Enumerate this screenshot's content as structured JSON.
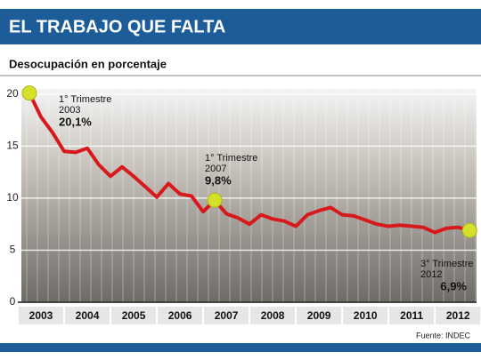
{
  "chart_data": {
    "type": "line",
    "title": "EL TRABAJO QUE FALTA",
    "subtitle": "Desocupación en porcentaje",
    "source": "Fuente: INDEC",
    "x": [
      2003,
      2003.25,
      2003.5,
      2003.75,
      2004,
      2004.25,
      2004.5,
      2004.75,
      2005,
      2005.25,
      2005.5,
      2005.75,
      2006,
      2006.25,
      2006.5,
      2006.75,
      2007,
      2007.25,
      2007.5,
      2007.75,
      2008,
      2008.25,
      2008.5,
      2008.75,
      2009,
      2009.25,
      2009.5,
      2009.75,
      2010,
      2010.25,
      2010.5,
      2010.75,
      2011,
      2011.25,
      2011.5,
      2011.75,
      2012,
      2012.25,
      2012.5
    ],
    "series": [
      {
        "color": "#d7191c",
        "values": [
          20.1,
          17.8,
          16.3,
          14.5,
          14.4,
          14.8,
          13.2,
          12.1,
          13.0,
          12.1,
          11.1,
          10.1,
          11.4,
          10.4,
          10.2,
          8.7,
          9.8,
          8.5,
          8.1,
          7.5,
          8.4,
          8.0,
          7.8,
          7.3,
          8.4,
          8.8,
          9.1,
          8.4,
          8.3,
          7.9,
          7.5,
          7.3,
          7.4,
          7.3,
          7.2,
          6.7,
          7.1,
          7.2,
          6.9
        ]
      }
    ],
    "annotations": [
      {
        "text": "1° Trimestre",
        "year": "2003",
        "value": "20,1%"
      },
      {
        "text": "1° Trimestre",
        "year": "2007",
        "value": "9,8%"
      },
      {
        "text": "3° Trimestre",
        "year": "2012",
        "value": "6,9%"
      }
    ],
    "xlim": [
      2002.75,
      2012.65
    ],
    "xticks": [
      2003,
      2004,
      2005,
      2006,
      2007,
      2008,
      2009,
      2010,
      2011,
      2012
    ],
    "ylim": [
      0,
      20.5
    ],
    "yticks": [
      0,
      5,
      10,
      15,
      20
    ],
    "grid": true
  }
}
